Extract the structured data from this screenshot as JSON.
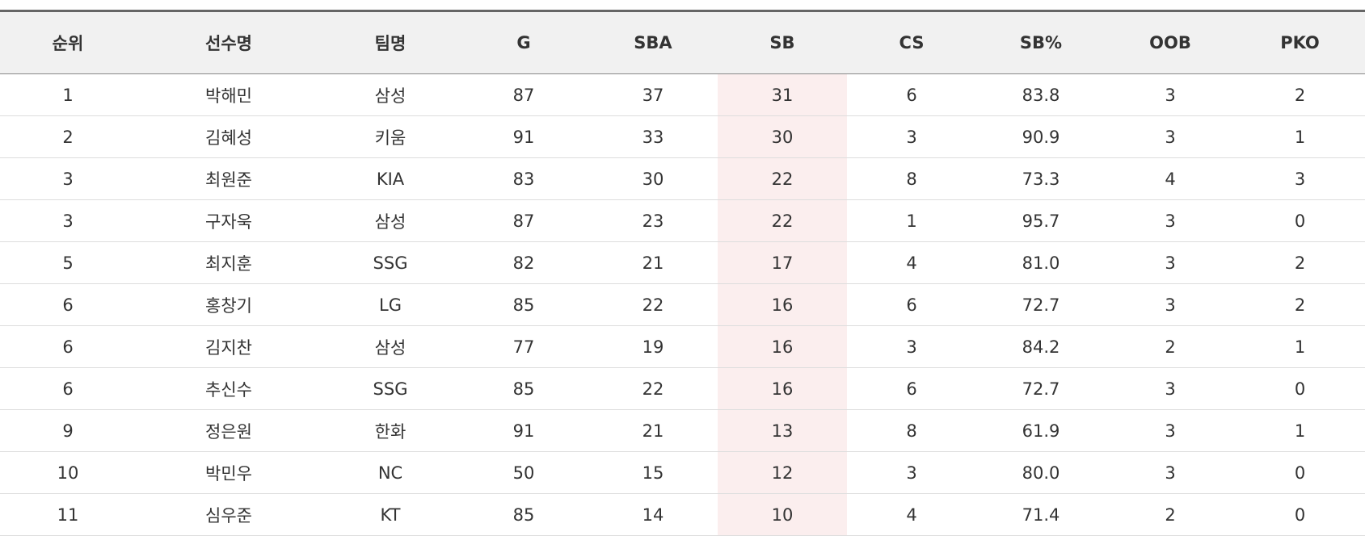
{
  "table": {
    "header": [
      "순위",
      "선수명",
      "팀명",
      "G",
      "SBA",
      "SB",
      "CS",
      "SB%",
      "OOB",
      "PKO"
    ],
    "rows": [
      [
        "1",
        "박해민",
        "삼성",
        "87",
        "37",
        "31",
        "6",
        "83.8",
        "3",
        "2"
      ],
      [
        "2",
        "김혜성",
        "키움",
        "91",
        "33",
        "30",
        "3",
        "90.9",
        "3",
        "1"
      ],
      [
        "3",
        "최원준",
        "KIA",
        "83",
        "30",
        "22",
        "8",
        "73.3",
        "4",
        "3"
      ],
      [
        "3",
        "구자욱",
        "삼성",
        "87",
        "23",
        "22",
        "1",
        "95.7",
        "3",
        "0"
      ],
      [
        "5",
        "최지훈",
        "SSG",
        "82",
        "21",
        "17",
        "4",
        "81.0",
        "3",
        "2"
      ],
      [
        "6",
        "홍창기",
        "LG",
        "85",
        "22",
        "16",
        "6",
        "72.7",
        "3",
        "2"
      ],
      [
        "6",
        "김지찬",
        "삼성",
        "77",
        "19",
        "16",
        "3",
        "84.2",
        "2",
        "1"
      ],
      [
        "6",
        "추신수",
        "SSG",
        "85",
        "22",
        "16",
        "6",
        "72.7",
        "3",
        "0"
      ],
      [
        "9",
        "정은원",
        "한화",
        "91",
        "21",
        "13",
        "8",
        "61.9",
        "3",
        "1"
      ],
      [
        "10",
        "박민우",
        "NC",
        "50",
        "15",
        "12",
        "3",
        "80.0",
        "3",
        "0"
      ],
      [
        "11",
        "심우준",
        "KT",
        "85",
        "14",
        "10",
        "4",
        "71.4",
        "2",
        "0"
      ]
    ]
  }
}
